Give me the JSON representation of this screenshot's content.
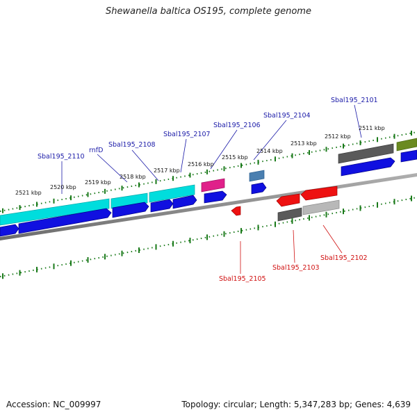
{
  "title": "Shewanella baltica OS195, complete genome",
  "footer": {
    "accession": "Accession: NC_009997",
    "summary": "Topology: circular; Length: 5,347,283 bp; Genes: 4,639"
  },
  "ticks_kbp": [
    {
      "label": "2521 kbp",
      "t": -55
    },
    {
      "label": "2520 kbp",
      "t": 30
    },
    {
      "label": "2519 kbp",
      "t": 102
    },
    {
      "label": "2518 kbp",
      "t": 150
    },
    {
      "label": "2517 kbp",
      "t": 200
    },
    {
      "label": "2516 kbp",
      "t": 250
    },
    {
      "label": "2515 kbp",
      "t": 300
    },
    {
      "label": "2514 kbp",
      "t": 350
    },
    {
      "label": "2513 kbp",
      "t": 400
    },
    {
      "label": "2512 kbp",
      "t": 450
    },
    {
      "label": "2511 kbp",
      "t": 500
    }
  ],
  "gene_labels": {
    "upper": [
      {
        "name": "Sbal195_2110",
        "color": "#1a1aa8"
      },
      {
        "name": "rnfD",
        "color": "#1a1aa8"
      },
      {
        "name": "Sbal195_2108",
        "color": "#1a1aa8"
      },
      {
        "name": "Sbal195_2107",
        "color": "#1a1aa8"
      },
      {
        "name": "Sbal195_2106",
        "color": "#1a1aa8"
      },
      {
        "name": "Sbal195_2104",
        "color": "#1a1aa8"
      },
      {
        "name": "Sbal195_2101",
        "color": "#1a1aa8"
      }
    ],
    "lower": [
      {
        "name": "Sbal195_2105",
        "color": "#d01010"
      },
      {
        "name": "Sbal195_2103",
        "color": "#d01010"
      },
      {
        "name": "Sbal195_2102",
        "color": "#d01010"
      }
    ]
  },
  "colors": {
    "forward_cds": "#1010e0",
    "reverse_cds": "#ee1111",
    "trna_pink": "#e0208a",
    "cog_cyan": "#00dddd",
    "cog_grey_dark": "#5a5a5a",
    "cog_grey_light": "#b8b8b8",
    "cog_olive": "#6a8a20",
    "cog_steel": "#4a7fb0",
    "tick_green": "#1a7a1a",
    "backbone": "#808080"
  }
}
